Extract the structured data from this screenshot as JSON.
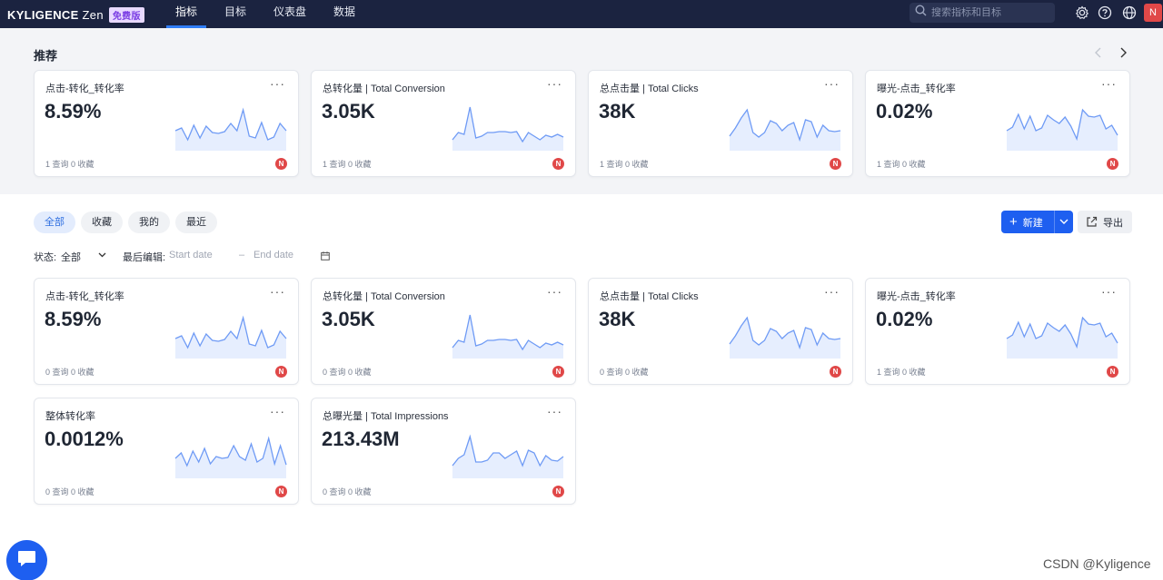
{
  "nav": {
    "brand": "KYLIGENCE",
    "brand_suffix": "Zen",
    "edition_badge": "免费版",
    "items": [
      {
        "label": "指标",
        "active": true
      },
      {
        "label": "目标",
        "active": false
      },
      {
        "label": "仪表盘",
        "active": false
      },
      {
        "label": "数据",
        "active": false
      }
    ],
    "search_placeholder": "搜索指标和目标",
    "icons": [
      "settings-icon",
      "help-icon",
      "globe-icon"
    ],
    "user_initial": "N"
  },
  "recommended": {
    "title": "推荐",
    "cards": [
      {
        "title": "点击-转化_转化率",
        "value": "8.59%",
        "meta": "1 查询 0 收藏",
        "owner": "N",
        "spark": [
          22,
          25,
          12,
          28,
          14,
          27,
          20,
          19,
          21,
          30,
          22,
          45,
          16,
          14,
          31,
          12,
          15,
          30,
          22
        ]
      },
      {
        "title": "总转化量 | Total Conversion",
        "value": "3.05K",
        "meta": "1 查询 0 收藏",
        "owner": "N",
        "spark": [
          12,
          20,
          18,
          48,
          14,
          16,
          20,
          20,
          21,
          21,
          20,
          21,
          10,
          20,
          16,
          12,
          17,
          15,
          18,
          15
        ]
      },
      {
        "title": "总点击量 | Total Clicks",
        "value": "38K",
        "meta": "1 查询 0 收藏",
        "owner": "N",
        "spark": [
          16,
          25,
          36,
          45,
          20,
          15,
          20,
          33,
          30,
          22,
          28,
          31,
          12,
          34,
          32,
          15,
          28,
          22,
          21,
          22
        ]
      },
      {
        "title": "曝光-点击_转化率",
        "value": "0.02%",
        "meta": "1 查询 0 收藏",
        "owner": "N",
        "spark": [
          22,
          26,
          40,
          24,
          38,
          22,
          25,
          39,
          34,
          30,
          37,
          27,
          13,
          45,
          38,
          37,
          39,
          24,
          28,
          17
        ]
      }
    ]
  },
  "tabs": [
    {
      "label": "全部",
      "active": true
    },
    {
      "label": "收藏",
      "active": false
    },
    {
      "label": "我的",
      "active": false
    },
    {
      "label": "最近",
      "active": false
    }
  ],
  "actions": {
    "new_label": "新建",
    "export_label": "导出"
  },
  "filters": {
    "status_label": "状态:",
    "status_value": "全部",
    "edited_label": "最后编辑:",
    "start_placeholder": "Start date",
    "end_placeholder": "End date"
  },
  "cards": [
    {
      "title": "点击-转化_转化率",
      "value": "8.59%",
      "meta": "0 查询 0 收藏",
      "owner": "N",
      "spark": [
        22,
        25,
        12,
        28,
        14,
        27,
        20,
        19,
        21,
        30,
        22,
        45,
        16,
        14,
        31,
        12,
        15,
        30,
        22
      ]
    },
    {
      "title": "总转化量 | Total Conversion",
      "value": "3.05K",
      "meta": "0 查询 0 收藏",
      "owner": "N",
      "spark": [
        12,
        20,
        18,
        48,
        14,
        16,
        20,
        20,
        21,
        21,
        20,
        21,
        10,
        20,
        16,
        12,
        17,
        15,
        18,
        15
      ]
    },
    {
      "title": "总点击量 | Total Clicks",
      "value": "38K",
      "meta": "0 查询 0 收藏",
      "owner": "N",
      "spark": [
        16,
        25,
        36,
        45,
        20,
        15,
        20,
        33,
        30,
        22,
        28,
        31,
        12,
        34,
        32,
        15,
        28,
        22,
        21,
        22
      ]
    },
    {
      "title": "曝光-点击_转化率",
      "value": "0.02%",
      "meta": "1 查询 0 收藏",
      "owner": "N",
      "spark": [
        22,
        26,
        40,
        24,
        38,
        22,
        25,
        39,
        34,
        30,
        37,
        27,
        13,
        45,
        38,
        37,
        39,
        24,
        28,
        17
      ]
    },
    {
      "title": "整体转化率",
      "value": "0.0012%",
      "meta": "0 查询 0 收藏",
      "owner": "N",
      "spark": [
        22,
        28,
        14,
        30,
        18,
        33,
        16,
        24,
        22,
        23,
        36,
        24,
        20,
        38,
        18,
        22,
        44,
        16,
        36,
        15
      ]
    },
    {
      "title": "总曝光量 | Total Impressions",
      "value": "213.43M",
      "meta": "0 查询 0 收藏",
      "owner": "N",
      "spark": [
        14,
        22,
        26,
        46,
        18,
        18,
        20,
        28,
        28,
        22,
        26,
        30,
        14,
        31,
        28,
        14,
        25,
        20,
        19,
        24
      ]
    }
  ],
  "footer": {
    "watermark": "CSDN @Kyligence"
  },
  "colors": {
    "nav_bg": "#1b2340",
    "accent": "#1e5ff0",
    "spark": "#6f9bf5",
    "owner_badge": "#e04848"
  }
}
